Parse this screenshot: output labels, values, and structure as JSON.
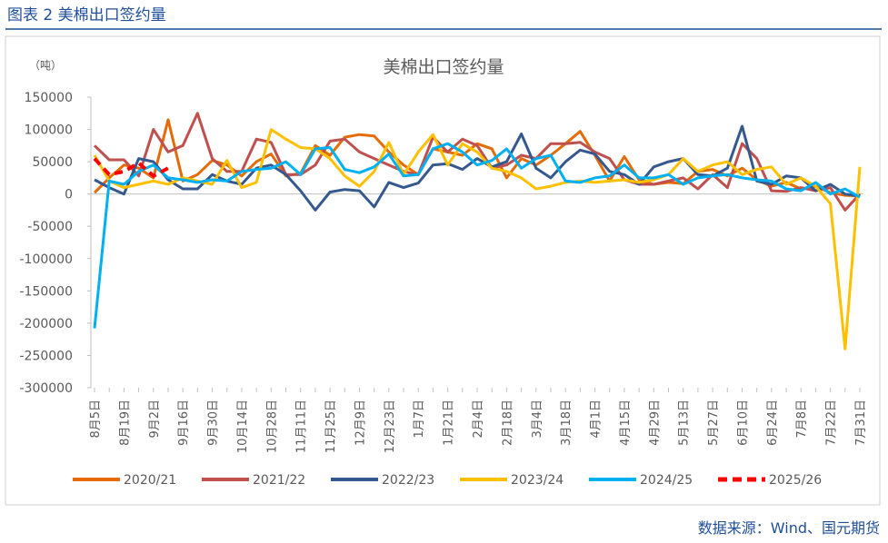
{
  "header": {
    "title": "图表 2  美棉出口签约量"
  },
  "chart_data": {
    "type": "line",
    "title": "美棉出口签约量",
    "y_label": "（吨）",
    "categories": [
      "8月5日",
      null,
      "8月19日",
      null,
      "9月2日",
      null,
      "9月16日",
      null,
      "9月30日",
      null,
      "10月14日",
      null,
      "10月28日",
      null,
      "11月11日",
      null,
      "11月25日",
      null,
      "12月9日",
      null,
      "12月23日",
      null,
      "1月7日",
      null,
      "1月21日",
      null,
      "2月4日",
      null,
      "2月18日",
      null,
      "3月4日",
      null,
      "3月18日",
      null,
      "4月1日",
      null,
      "4月15日",
      null,
      "4月29日",
      null,
      "5月13日",
      null,
      "5月27日",
      null,
      "6月10日",
      null,
      "6月24日",
      null,
      "7月8日",
      null,
      "7月22日",
      null,
      "7月31日"
    ],
    "ylim": [
      -300000,
      150000
    ],
    "yticks": [
      150000,
      100000,
      50000,
      0,
      -50000,
      -100000,
      -150000,
      -200000,
      -250000,
      -300000
    ],
    "series": [
      {
        "name": "2020/21",
        "color": "#e36c09",
        "dash": false,
        "values": [
          2000,
          25000,
          45000,
          40000,
          25000,
          115000,
          20000,
          30000,
          52000,
          45000,
          28000,
          50000,
          62000,
          28000,
          32000,
          75000,
          60000,
          88000,
          92000,
          90000,
          65000,
          45000,
          30000,
          70000,
          65000,
          60000,
          78000,
          70000,
          25000,
          55000,
          45000,
          60000,
          78000,
          97000,
          60000,
          20000,
          58000,
          22000,
          15000,
          18000,
          16000,
          35000,
          38000,
          28000,
          40000,
          22000,
          12000,
          18000,
          8000,
          12000,
          2000,
          -2000,
          -3000
        ]
      },
      {
        "name": "2021/22",
        "color": "#c0504d",
        "dash": false,
        "values": [
          75000,
          53000,
          53000,
          28000,
          100000,
          65000,
          75000,
          125000,
          55000,
          35000,
          35000,
          85000,
          80000,
          30000,
          30000,
          45000,
          82000,
          85000,
          65000,
          55000,
          45000,
          35000,
          30000,
          88000,
          65000,
          85000,
          75000,
          40000,
          45000,
          60000,
          55000,
          78000,
          78000,
          80000,
          65000,
          55000,
          22000,
          15000,
          15000,
          20000,
          25000,
          8000,
          30000,
          10000,
          78000,
          55000,
          5000,
          4000,
          10000,
          5000,
          10000,
          -25000,
          0
        ]
      },
      {
        "name": "2022/23",
        "color": "#35598f",
        "dash": false,
        "values": [
          22000,
          10000,
          0,
          55000,
          50000,
          22000,
          8000,
          8000,
          30000,
          20000,
          15000,
          40000,
          45000,
          30000,
          5000,
          -25000,
          3000,
          7000,
          5000,
          -20000,
          18000,
          10000,
          17000,
          45000,
          47000,
          38000,
          55000,
          42000,
          50000,
          93000,
          40000,
          25000,
          50000,
          68000,
          62000,
          35000,
          30000,
          15000,
          42000,
          50000,
          55000,
          30000,
          28000,
          40000,
          105000,
          20000,
          15000,
          28000,
          25000,
          5000,
          15000,
          0,
          -3000
        ]
      },
      {
        "name": "2023/24",
        "color": "#ffc000",
        "dash": false,
        "values": [
          60000,
          20000,
          10000,
          15000,
          20000,
          15000,
          25000,
          20000,
          15000,
          52000,
          10000,
          18000,
          100000,
          85000,
          72000,
          70000,
          55000,
          28000,
          12000,
          35000,
          80000,
          30000,
          65000,
          92000,
          45000,
          78000,
          65000,
          40000,
          35000,
          25000,
          8000,
          12000,
          18000,
          20000,
          18000,
          20000,
          22000,
          18000,
          22000,
          30000,
          55000,
          35000,
          45000,
          50000,
          30000,
          38000,
          42000,
          15000,
          25000,
          12000,
          -15000,
          -240000,
          42000
        ]
      },
      {
        "name": "2024/25",
        "color": "#00b0f0",
        "dash": false,
        "values": [
          -208000,
          20000,
          15000,
          35000,
          45000,
          25000,
          22000,
          18000,
          22000,
          20000,
          35000,
          38000,
          40000,
          50000,
          30000,
          70000,
          72000,
          38000,
          33000,
          42000,
          62000,
          28000,
          30000,
          70000,
          78000,
          65000,
          45000,
          52000,
          70000,
          40000,
          55000,
          60000,
          20000,
          18000,
          25000,
          28000,
          45000,
          25000,
          25000,
          30000,
          15000,
          25000,
          28000,
          30000,
          25000,
          22000,
          20000,
          8000,
          5000,
          18000,
          0,
          8000,
          -5000
        ]
      },
      {
        "name": "2025/26",
        "color": "#ff0000",
        "dash": true,
        "values": [
          55000,
          30000,
          35000,
          48000,
          28000,
          40000,
          null,
          null,
          null,
          null,
          null,
          null,
          null,
          null,
          null,
          null,
          null,
          null,
          null,
          null,
          null,
          null,
          null,
          null,
          null,
          null,
          null,
          null,
          null,
          null,
          null,
          null,
          null,
          null,
          null,
          null,
          null,
          null,
          null,
          null,
          null,
          null,
          null,
          null,
          null,
          null,
          null,
          null,
          null,
          null,
          null,
          null,
          null
        ]
      }
    ]
  },
  "source": "数据来源：Wind、国元期货"
}
